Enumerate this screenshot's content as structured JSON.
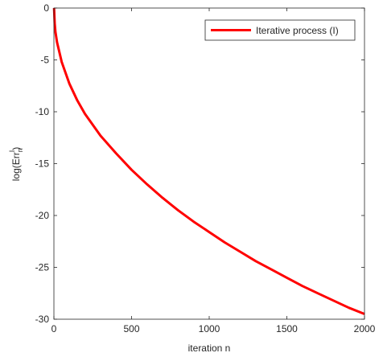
{
  "chart_data": {
    "type": "line",
    "title": "",
    "xlabel": "iteration n",
    "ylabel_parts": {
      "base": "log(Err",
      "sub": "n",
      "sup": "I",
      "close": ")"
    },
    "xlim": [
      0,
      2000
    ],
    "ylim": [
      -30,
      0
    ],
    "xticks": [
      0,
      500,
      1000,
      1500,
      2000
    ],
    "yticks": [
      0,
      -5,
      -10,
      -15,
      -20,
      -25,
      -30
    ],
    "xtick_labels": [
      "0",
      "500",
      "1000",
      "1500",
      "2000"
    ],
    "ytick_labels": [
      "0",
      "-5",
      "-10",
      "-15",
      "-20",
      "-25",
      "-30"
    ],
    "grid": false,
    "legend_position": "top-right",
    "series": [
      {
        "name": "Iterative process (I)",
        "color": "#ff0000",
        "x": [
          1,
          5,
          10,
          20,
          50,
          100,
          150,
          200,
          300,
          400,
          500,
          600,
          700,
          800,
          900,
          1000,
          1100,
          1200,
          1300,
          1400,
          1500,
          1600,
          1700,
          1800,
          1900,
          2000
        ],
        "y": [
          0,
          -1.5,
          -2.3,
          -3.3,
          -5.2,
          -7.3,
          -8.9,
          -10.2,
          -12.3,
          -14.0,
          -15.6,
          -17.0,
          -18.3,
          -19.5,
          -20.6,
          -21.6,
          -22.6,
          -23.5,
          -24.4,
          -25.2,
          -26.0,
          -26.8,
          -27.5,
          -28.2,
          -28.9,
          -29.5
        ]
      }
    ]
  }
}
